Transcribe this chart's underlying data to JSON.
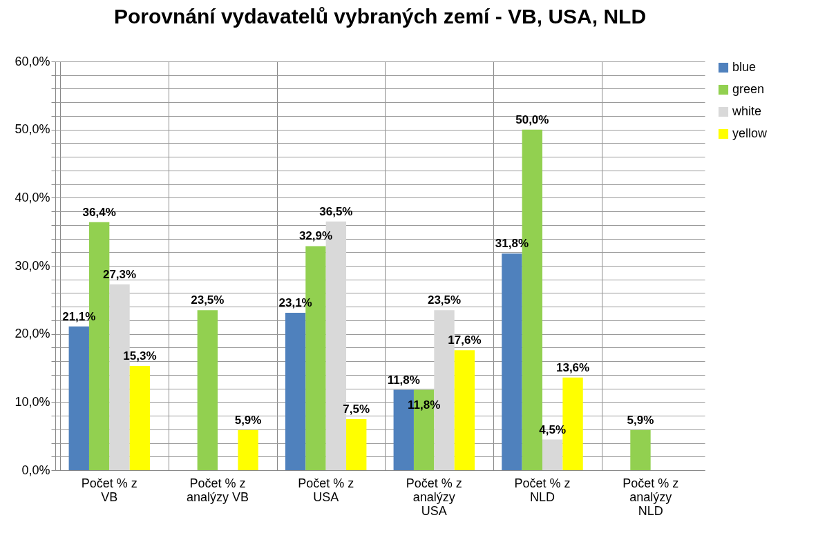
{
  "chart_data": {
    "type": "bar",
    "title": "Porovnání vydavatelů vybraných zemí - VB, USA, NLD",
    "categories": [
      "Počet % z VB",
      "Počet % z analýzy VB",
      "Počet % z USA",
      "Počet % z analýzy USA",
      "Počet % z NLD",
      "Počet % z analýzy NLD"
    ],
    "series": [
      {
        "name": "blue",
        "color": "#4f81bd",
        "values": [
          21.1,
          null,
          23.1,
          11.8,
          31.8,
          null
        ],
        "value_labels": [
          "21,1%",
          null,
          "23,1%",
          "11,8%",
          "31,8%",
          null
        ]
      },
      {
        "name": "green",
        "color": "#92d050",
        "values": [
          36.4,
          23.5,
          32.9,
          11.8,
          50.0,
          5.9
        ],
        "value_labels": [
          "36,4%",
          "23,5%",
          "32,9%",
          "11,8%",
          "50,0%",
          "5,9%"
        ]
      },
      {
        "name": "white",
        "color": "#d9d9d9",
        "values": [
          27.3,
          null,
          36.5,
          23.5,
          4.5,
          null
        ],
        "value_labels": [
          "27,3%",
          null,
          "36,5%",
          "23,5%",
          "4,5%",
          null
        ]
      },
      {
        "name": "yellow",
        "color": "#ffff00",
        "values": [
          15.3,
          5.9,
          7.5,
          17.6,
          13.6,
          null
        ],
        "value_labels": [
          "15,3%",
          "5,9%",
          "7,5%",
          "17,6%",
          "13,6%",
          null
        ]
      }
    ],
    "ylim": [
      0,
      60
    ],
    "yticks": [
      {
        "value": 0,
        "label": "0,0%"
      },
      {
        "value": 2,
        "label": null
      },
      {
        "value": 4,
        "label": null
      },
      {
        "value": 6,
        "label": null
      },
      {
        "value": 8,
        "label": null
      },
      {
        "value": 10,
        "label": "10,0%"
      },
      {
        "value": 12,
        "label": null
      },
      {
        "value": 14,
        "label": null
      },
      {
        "value": 16,
        "label": null
      },
      {
        "value": 18,
        "label": null
      },
      {
        "value": 20,
        "label": "20,0%"
      },
      {
        "value": 22,
        "label": null
      },
      {
        "value": 24,
        "label": null
      },
      {
        "value": 26,
        "label": null
      },
      {
        "value": 28,
        "label": null
      },
      {
        "value": 30,
        "label": "30,0%"
      },
      {
        "value": 32,
        "label": null
      },
      {
        "value": 34,
        "label": null
      },
      {
        "value": 36,
        "label": null
      },
      {
        "value": 38,
        "label": null
      },
      {
        "value": 40,
        "label": "40,0%"
      },
      {
        "value": 42,
        "label": null
      },
      {
        "value": 44,
        "label": null
      },
      {
        "value": 46,
        "label": null
      },
      {
        "value": 48,
        "label": null
      },
      {
        "value": 50,
        "label": "50,0%"
      },
      {
        "value": 52,
        "label": null
      },
      {
        "value": 54,
        "label": null
      },
      {
        "value": 56,
        "label": null
      },
      {
        "value": 58,
        "label": null
      },
      {
        "value": 60,
        "label": "60,0%"
      }
    ],
    "grid": true,
    "legend": "right"
  }
}
